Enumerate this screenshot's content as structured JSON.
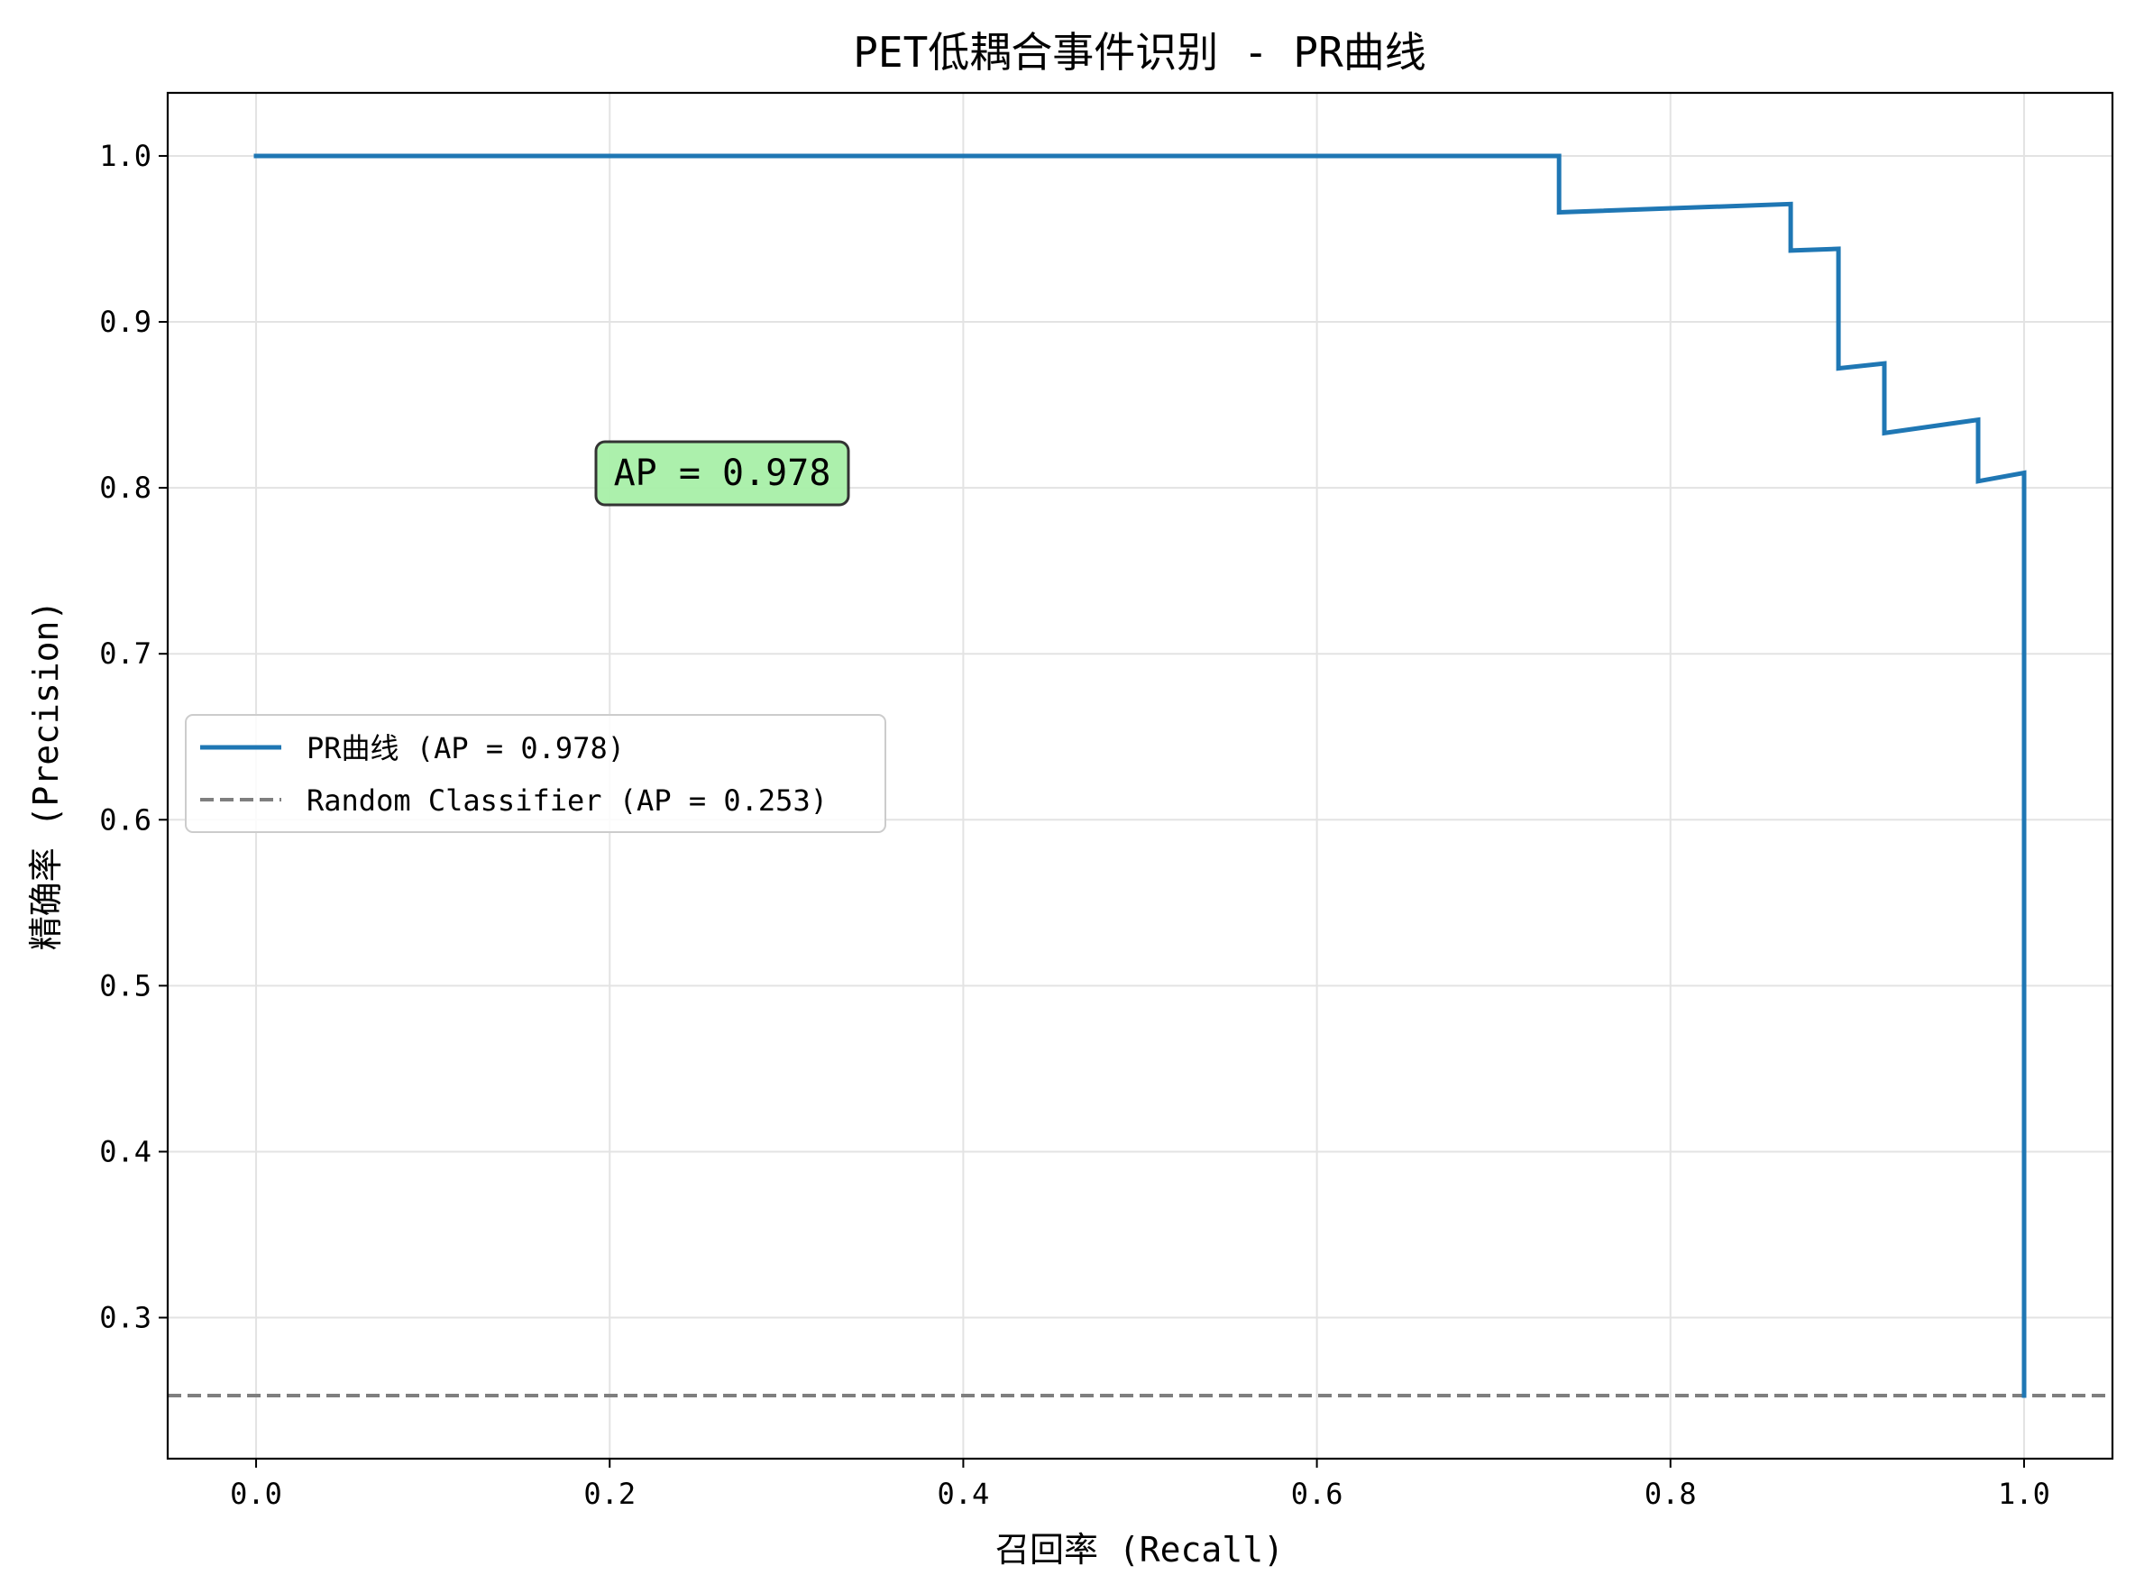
{
  "chart_data": {
    "type": "line",
    "title": "PET低耦合事件识别 - PR曲线",
    "xlabel": "召回率 (Recall)",
    "ylabel": "精确率 (Precision)",
    "xlim": [
      -0.05,
      1.05
    ],
    "ylim": [
      0.215,
      1.038
    ],
    "grid": true,
    "legend_position": "center-left",
    "x_ticks": [
      0.0,
      0.2,
      0.4,
      0.6,
      0.8,
      1.0
    ],
    "x_tick_labels": [
      "0.0",
      "0.2",
      "0.4",
      "0.6",
      "0.8",
      "1.0"
    ],
    "y_ticks": [
      0.3,
      0.4,
      0.5,
      0.6,
      0.7,
      0.8,
      0.9,
      1.0
    ],
    "y_tick_labels": [
      "0.3",
      "0.4",
      "0.5",
      "0.6",
      "0.7",
      "0.8",
      "0.9",
      "1.0"
    ],
    "series": [
      {
        "name": "PR曲线 (AP = 0.978)",
        "color": "#1f77b4",
        "style": "solid",
        "step": true,
        "x": [
          0.0,
          0.737,
          0.737,
          0.868,
          0.868,
          0.895,
          0.895,
          0.921,
          0.921,
          0.974,
          0.974,
          1.0,
          1.0
        ],
        "y": [
          1.0,
          1.0,
          0.966,
          0.971,
          0.943,
          0.944,
          0.872,
          0.875,
          0.833,
          0.841,
          0.804,
          0.809,
          0.253
        ]
      },
      {
        "name": "Random Classifier (AP = 0.253)",
        "color": "#7f7f7f",
        "style": "dashed",
        "horizontal_line": true,
        "y": 0.253
      }
    ],
    "annotations": [
      {
        "text": "AP = 0.978",
        "x": 0.265,
        "y": 0.808,
        "box_color": "#a8efa8"
      }
    ]
  }
}
